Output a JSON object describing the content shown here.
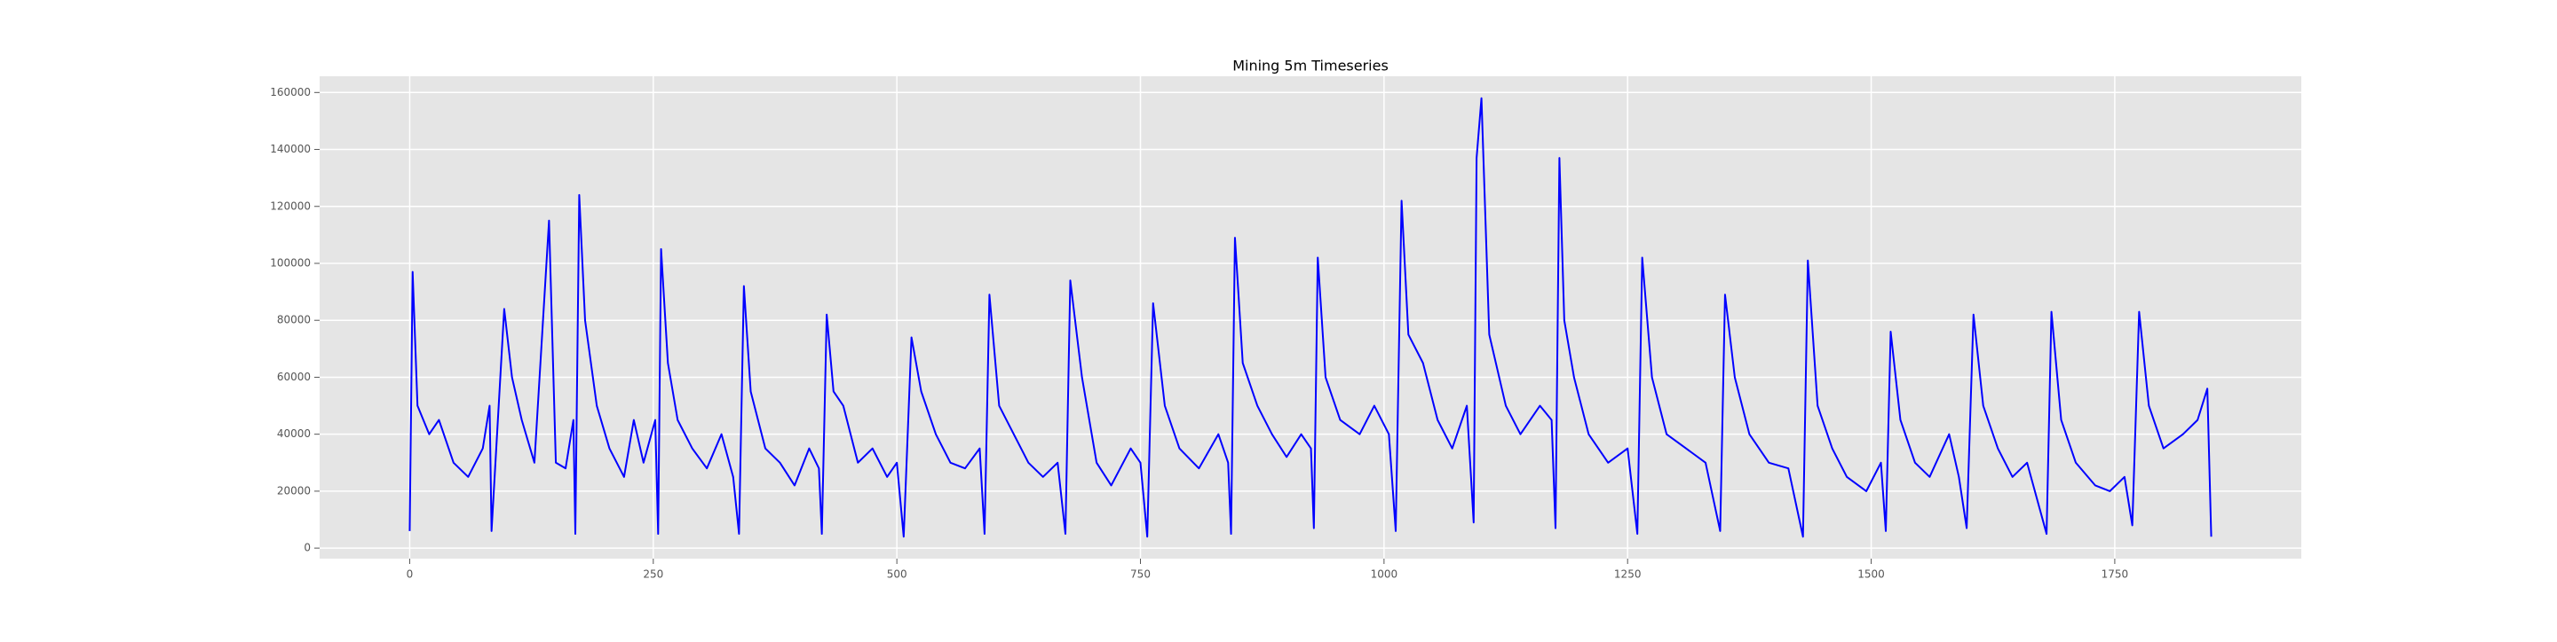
{
  "chart_data": {
    "type": "line",
    "title": "Mining 5m Timeseries",
    "color": "#0000ff",
    "grid": true,
    "xlim": [
      -92.45,
      1941.45
    ],
    "ylim": [
      -3700,
      165700
    ],
    "xticks": [
      0,
      250,
      500,
      750,
      1000,
      1250,
      1500,
      1750
    ],
    "yticks": [
      0,
      20000,
      40000,
      60000,
      80000,
      100000,
      120000,
      140000,
      160000
    ],
    "x": [
      0,
      3,
      8,
      20,
      30,
      45,
      60,
      75,
      82,
      84,
      97,
      105,
      115,
      128,
      143,
      150,
      160,
      168,
      170,
      174,
      180,
      192,
      205,
      220,
      230,
      240,
      252,
      255,
      258,
      265,
      275,
      290,
      305,
      320,
      332,
      338,
      343,
      350,
      365,
      380,
      395,
      410,
      420,
      423,
      428,
      435,
      445,
      460,
      475,
      490,
      500,
      507,
      515,
      525,
      540,
      555,
      570,
      585,
      590,
      595,
      605,
      620,
      635,
      650,
      665,
      673,
      678,
      690,
      705,
      720,
      740,
      750,
      757,
      763,
      775,
      790,
      810,
      830,
      840,
      843,
      847,
      855,
      870,
      885,
      900,
      915,
      925,
      928,
      932,
      940,
      955,
      975,
      990,
      1005,
      1012,
      1018,
      1025,
      1040,
      1055,
      1070,
      1085,
      1092,
      1095,
      1100,
      1108,
      1125,
      1140,
      1160,
      1172,
      1176,
      1180,
      1185,
      1195,
      1210,
      1230,
      1250,
      1260,
      1265,
      1275,
      1290,
      1310,
      1330,
      1345,
      1350,
      1360,
      1375,
      1395,
      1415,
      1430,
      1435,
      1445,
      1460,
      1475,
      1495,
      1510,
      1515,
      1520,
      1530,
      1545,
      1560,
      1580,
      1590,
      1598,
      1605,
      1615,
      1630,
      1645,
      1660,
      1680,
      1685,
      1695,
      1710,
      1730,
      1745,
      1760,
      1768,
      1775,
      1785,
      1800,
      1820,
      1835,
      1845,
      1849
    ],
    "values": [
      6000,
      97000,
      50000,
      40000,
      45000,
      30000,
      25000,
      35000,
      50000,
      6000,
      84000,
      60000,
      45000,
      30000,
      115000,
      30000,
      28000,
      45000,
      5000,
      124000,
      80000,
      50000,
      35000,
      25000,
      45000,
      30000,
      45000,
      5000,
      105000,
      65000,
      45000,
      35000,
      28000,
      40000,
      25000,
      5000,
      92000,
      55000,
      35000,
      30000,
      22000,
      35000,
      28000,
      5000,
      82000,
      55000,
      50000,
      30000,
      35000,
      25000,
      30000,
      4000,
      74000,
      55000,
      40000,
      30000,
      28000,
      35000,
      5000,
      89000,
      50000,
      40000,
      30000,
      25000,
      30000,
      5000,
      94000,
      60000,
      30000,
      22000,
      35000,
      30000,
      4000,
      86000,
      50000,
      35000,
      28000,
      40000,
      30000,
      5000,
      109000,
      65000,
      50000,
      40000,
      32000,
      40000,
      35000,
      7000,
      102000,
      60000,
      45000,
      40000,
      50000,
      40000,
      6000,
      122000,
      75000,
      65000,
      45000,
      35000,
      50000,
      9000,
      137000,
      158000,
      75000,
      50000,
      40000,
      50000,
      45000,
      7000,
      137000,
      80000,
      60000,
      40000,
      30000,
      35000,
      5000,
      102000,
      60000,
      40000,
      35000,
      30000,
      6000,
      89000,
      60000,
      40000,
      30000,
      28000,
      4000,
      101000,
      50000,
      35000,
      25000,
      20000,
      30000,
      6000,
      76000,
      45000,
      30000,
      25000,
      40000,
      25000,
      7000,
      82000,
      50000,
      35000,
      25000,
      30000,
      5000,
      83000,
      45000,
      30000,
      22000,
      20000,
      25000,
      8000,
      83000,
      50000,
      35000,
      40000,
      45000,
      56000,
      4000
    ]
  }
}
